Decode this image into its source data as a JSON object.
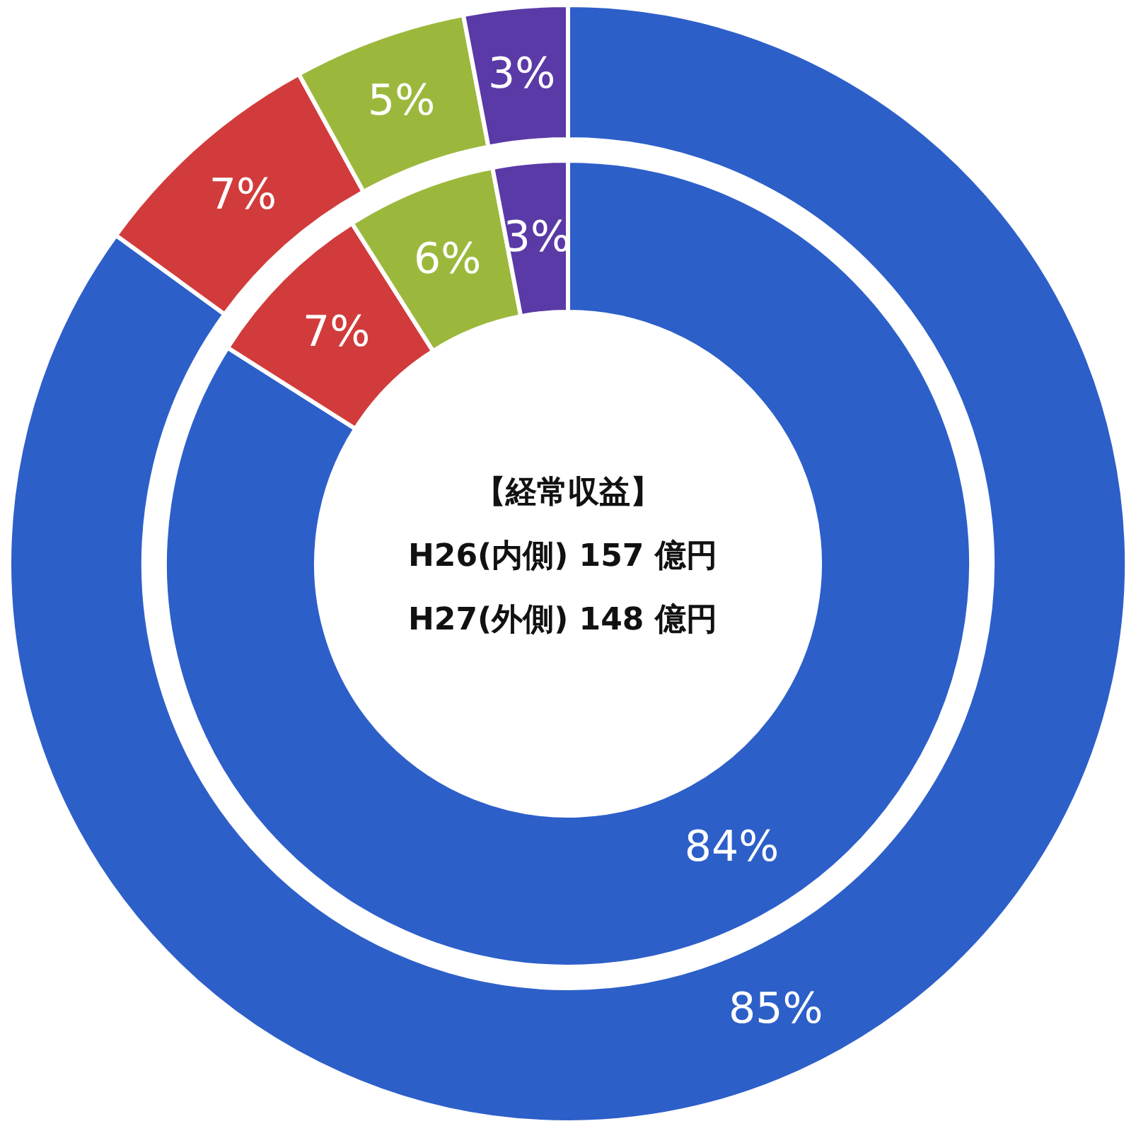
{
  "chart_data": {
    "type": "donut",
    "categories": [
      null,
      null,
      null,
      null
    ],
    "colors": [
      "#2d5fc9",
      "#d23b3b",
      "#9cb83c",
      "#5a3aa6"
    ],
    "series": [
      {
        "values": [
          84,
          7,
          6,
          3
        ],
        "value_labels": [
          "84%",
          "7%",
          "6%",
          "3%"
        ]
      },
      {
        "values": [
          85,
          7,
          5,
          3
        ],
        "value_labels": [
          "85%",
          "7%",
          "5%",
          "3%"
        ]
      }
    ],
    "annotations": [
      "【経常収益】",
      "H26(内側)  157 億円",
      "H27(外側)  148 億円"
    ]
  }
}
